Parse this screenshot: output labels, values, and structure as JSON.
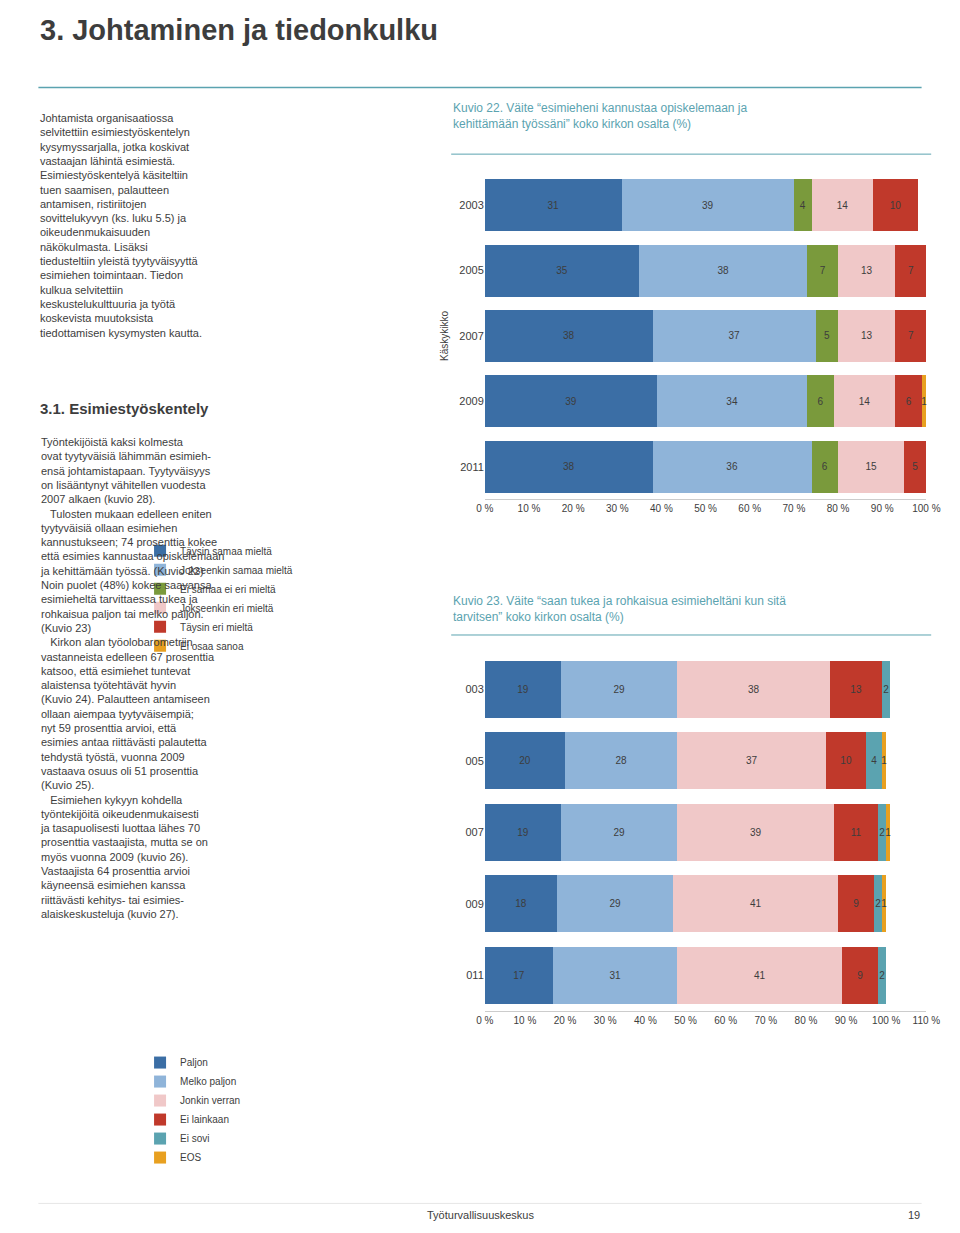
{
  "title": "3. Johtaminen ja tiedonkulku",
  "intro": "Johtamista organisaatiossa\nselvitettiin esimiestyöskentelyn\nkysymyssarjalla, jotka koskivat\nvastaajan lähintä esimiestä.\nEsimiestyöskentelyä käsiteltiin\ntuen saamisen, palautteen\nantamisen, ristiriitojen\nsovittelukyvyn (ks. luku 5.5) ja\noikeudenmukaisuuden\nnäkökulmasta. Lisäksi\ntiedusteltiin yleistä tyytyväisyyttä\nesimiehen toimintaan. Tiedon\nkulkua selvitettiin\nkeskustelukulttuuria ja työtä\nkoskevista muutoksista\ntiedottamisen kysymysten kautta.",
  "section_title": "3.1. Esimiestyöskentely",
  "section_text": "Työntekijöistä kaksi kolmesta\novat tyytyväisiä lähimmän esimieh-\nensä johtamistapaan. Tyytyväisyys\non lisääntynyt vähitellen vuodesta\n2007 alkaen (kuvio 28).\n   Tulosten mukaan edelleen eniten\ntyytyväisiä ollaan esimiehen\nkannustukseen; 74 prosenttia kokee\nettä esimies kannustaa opiskelemaan\nja kehittämään työssä. (Kuvio 22)\nNoin puolet (48%) kokee saavansa\nesimieheltä tarvittaessa tukea ja\nrohkaisua paljon tai melko paljon.\n(Kuvio 23)\n   Kirkon alan työolobarometriin\nvastanneista edelleen 67 prosenttia\nkatsoo, että esimiehet tuntevat\nalaistensa työtehtävät hyvin\n(Kuvio 24). Palautteen antamiseen\nollaan aiempaa tyytyväisempiä;\nnyt 59 prosenttia arvioi, että\nesimies antaa riittävästi palautetta\ntehdystä työstä, vuonna 2009\nvastaava osuus oli 51 prosenttia\n(Kuvio 25).\n   Esimiehen kykyyn kohdella\ntyöntekijöitä oikeudenmukaisesti\nja tasapuolisesti luottaa lähes 70\nprosenttia vastaajista, mutta se on\nmyös vuonna 2009 (kuvio 26).\nVastaajista 64 prosenttia arvioi\nkäyneensä esimiehen kanssa\nriittävästi kehitys- tai esimies-\nalaiskeskusteluja (kuvio 27).",
  "footer": [
    "Työturvallisuuskeskus",
    "19"
  ],
  "chart_data": [
    {
      "type": "bar",
      "orientation": "horizontal",
      "stacked": true,
      "data_labels": true,
      "grid": false,
      "legend": "bottom",
      "title": "Kuvio 22. Väite “esimieheni kannustaa opiskelemaan ja\nkehittämään työssäni” koko kirkon osalta (%)",
      "ylabel": "Käskykikko",
      "categories": [
        "2011",
        "2009",
        "2007",
        "2005",
        "2003"
      ],
      "series": [
        {
          "name": "Täysin samaa mieltä",
          "color": "#3b6ea5",
          "values": [
            38,
            39,
            38,
            35,
            31
          ]
        },
        {
          "name": "Jokseenkin samaa mieltä",
          "color": "#8fb4d9",
          "values": [
            36,
            34,
            37,
            38,
            39
          ]
        },
        {
          "name": "Ei samaa ei eri mieltä",
          "color": "#7a9a3c",
          "values": [
            6,
            6,
            5,
            7,
            4
          ]
        },
        {
          "name": "Jokseenkin eri mieltä",
          "color": "#f0c8c8",
          "values": [
            15,
            14,
            13,
            13,
            14
          ]
        },
        {
          "name": "Täysin eri mieltä",
          "color": "#c0392b",
          "values": [
            5,
            6,
            7,
            7,
            10
          ]
        },
        {
          "name": "Ei osaa sanoa",
          "color": "#e8a020",
          "values": [
            0,
            1,
            0,
            0,
            0
          ]
        }
      ],
      "xlim": [
        0,
        100
      ],
      "xticks": [
        {
          "value": 0,
          "label": "0 %"
        },
        {
          "value": 10,
          "label": "10 %"
        },
        {
          "value": 20,
          "label": "20 %"
        },
        {
          "value": 30,
          "label": "30 %"
        },
        {
          "value": 40,
          "label": "40 %"
        },
        {
          "value": 50,
          "label": "50 %"
        },
        {
          "value": 60,
          "label": "60 %"
        },
        {
          "value": 70,
          "label": "70 %"
        },
        {
          "value": 80,
          "label": "80 %"
        },
        {
          "value": 90,
          "label": "90 %"
        },
        {
          "value": 100,
          "label": "100 %"
        }
      ]
    },
    {
      "type": "bar",
      "orientation": "horizontal",
      "stacked": true,
      "data_labels": true,
      "grid": false,
      "legend": "bottom",
      "title": "Kuvio 23. Väite “saan tukea ja rohkaisua esimieheltäni kun sitä\ntarvitsen” koko kirkon osalta (%)",
      "categories": [
        "011",
        "009",
        "007",
        "005",
        "003"
      ],
      "series": [
        {
          "name": "Paljon",
          "color": "#3b6ea5",
          "values": [
            17,
            18,
            19,
            20,
            19
          ]
        },
        {
          "name": "Melko paljon",
          "color": "#8fb4d9",
          "values": [
            31,
            29,
            29,
            28,
            29
          ]
        },
        {
          "name": "Jonkin verran",
          "color": "#f0c8c8",
          "values": [
            41,
            41,
            39,
            37,
            38
          ]
        },
        {
          "name": "Ei lainkaan",
          "color": "#c0392b",
          "values": [
            9,
            9,
            11,
            10,
            13
          ]
        },
        {
          "name": "Ei sovi",
          "color": "#5ba3b0",
          "values": [
            2,
            2,
            2,
            4,
            2
          ]
        },
        {
          "name": "EOS",
          "color": "#e8a020",
          "values": [
            0,
            1,
            1,
            1,
            0
          ]
        }
      ],
      "xlim": [
        0,
        110
      ],
      "xticks": [
        {
          "value": 0,
          "label": "0 %"
        },
        {
          "value": 10,
          "label": "10 %"
        },
        {
          "value": 20,
          "label": "20 %"
        },
        {
          "value": 30,
          "label": "30 %"
        },
        {
          "value": 40,
          "label": "40 %"
        },
        {
          "value": 50,
          "label": "50 %"
        },
        {
          "value": 60,
          "label": "60 %"
        },
        {
          "value": 70,
          "label": "70 %"
        },
        {
          "value": 80,
          "label": "80 %"
        },
        {
          "value": 90,
          "label": "90 %"
        },
        {
          "value": 100,
          "label": "100 %"
        },
        {
          "value": 110,
          "label": "110 %"
        }
      ]
    }
  ]
}
